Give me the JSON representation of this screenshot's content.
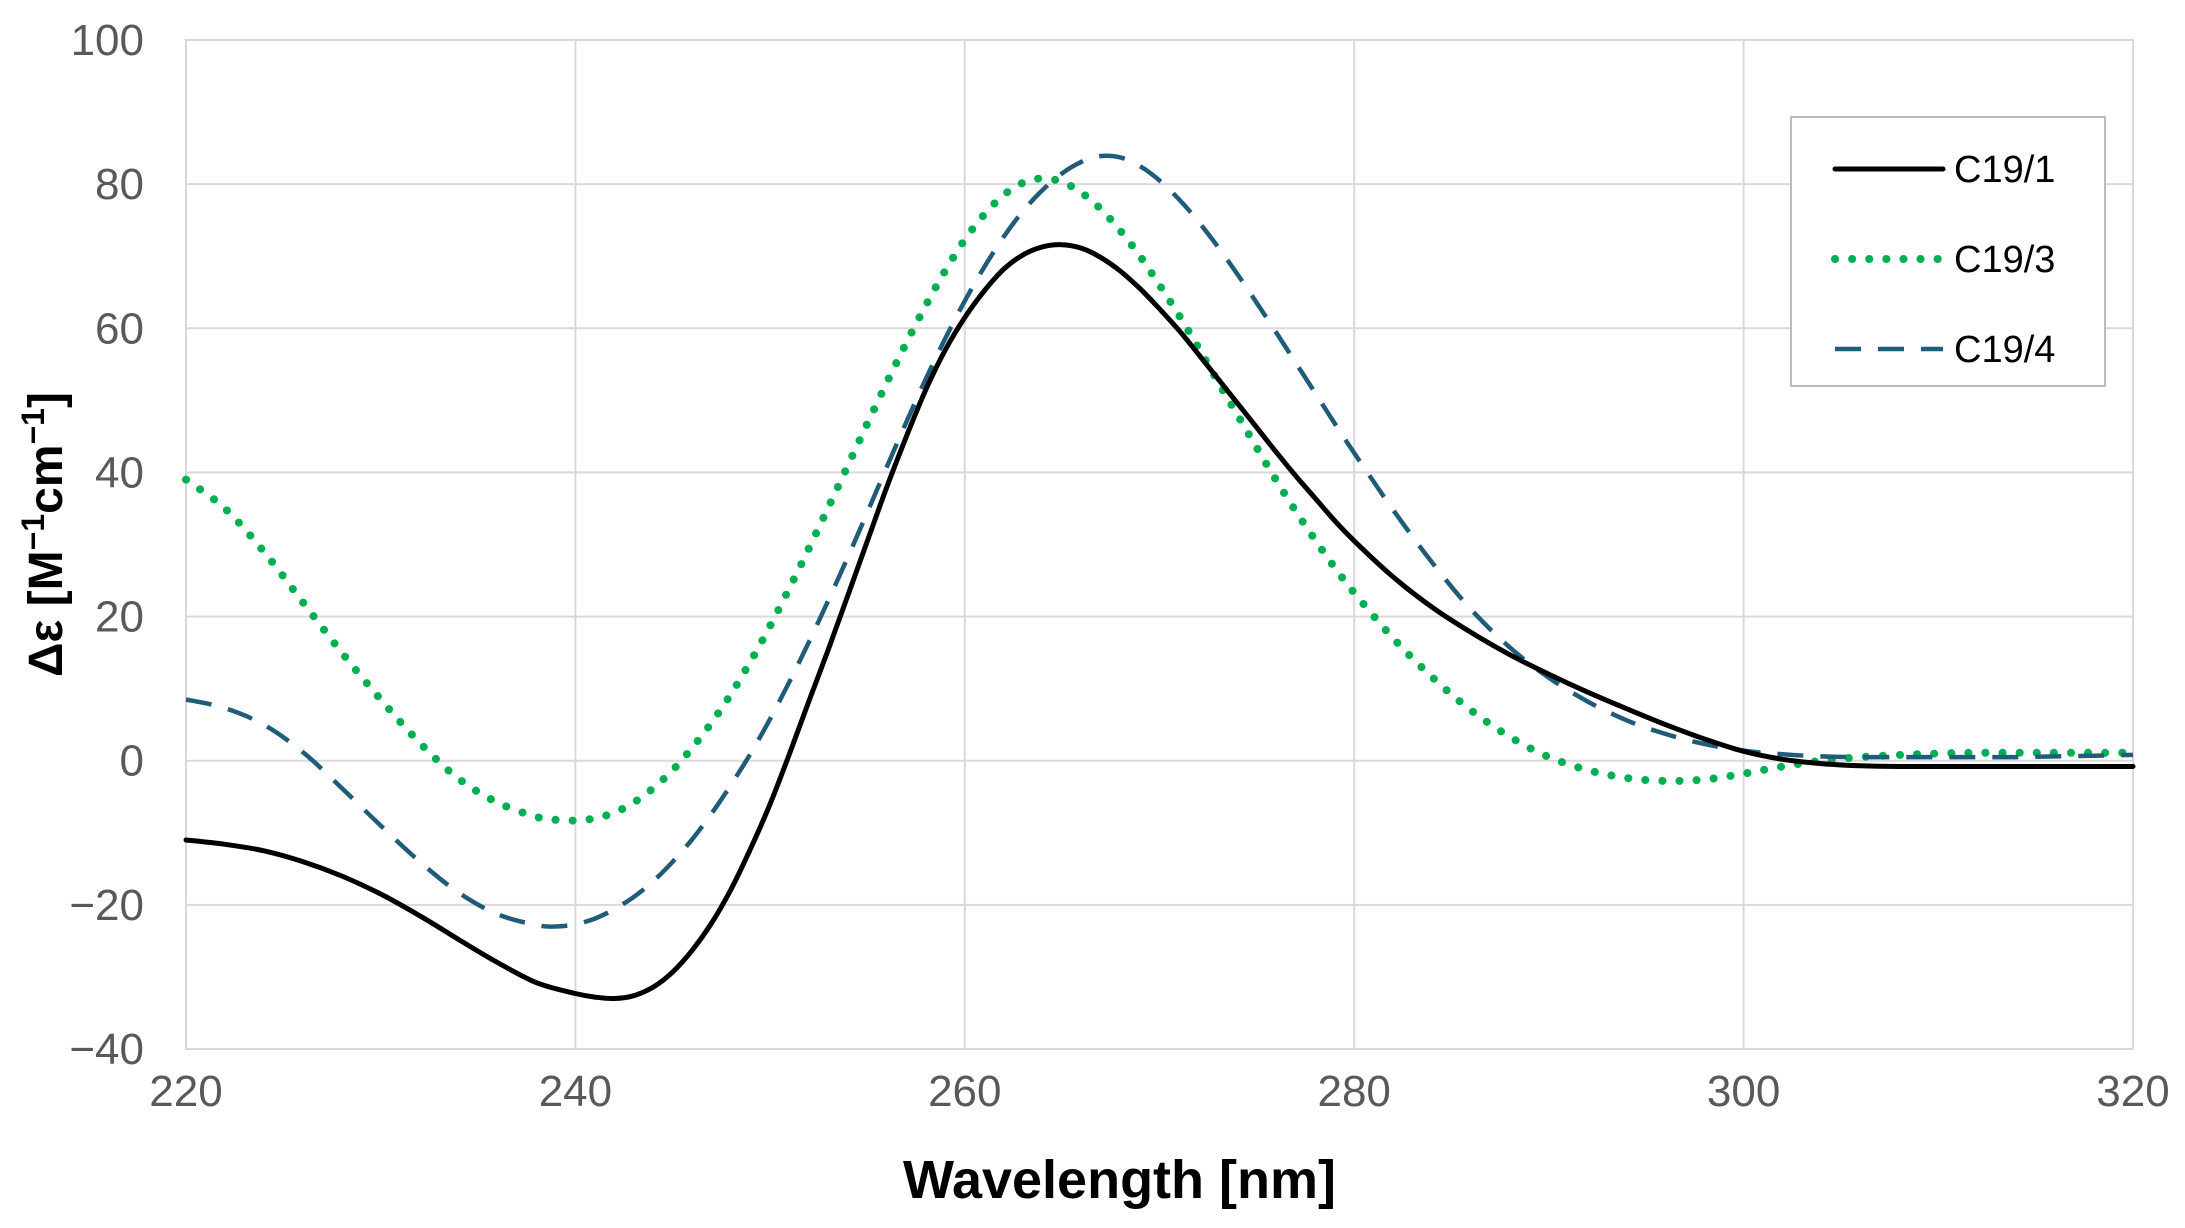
{
  "chart_data": {
    "type": "line",
    "title": "",
    "xlabel": "Wavelength [nm]",
    "ylabel_prefix": "Δε [M",
    "ylabel_sup1": "−1",
    "ylabel_mid": "cm",
    "ylabel_sup2": "−1",
    "ylabel_suffix": "]",
    "xlim": [
      220,
      320
    ],
    "ylim": [
      -40,
      100
    ],
    "xticks": [
      220,
      240,
      260,
      280,
      300,
      320
    ],
    "xtick_labels": [
      "220",
      "240",
      "260",
      "280",
      "300",
      "320"
    ],
    "yticks": [
      -40,
      -20,
      0,
      20,
      40,
      60,
      80,
      100
    ],
    "ytick_labels": [
      "−40",
      "−20",
      "0",
      "20",
      "40",
      "60",
      "80",
      "100"
    ],
    "grid": true,
    "legend_position": "top-right",
    "series": [
      {
        "name": "C19/1",
        "color": "#000000",
        "style": "solid",
        "x": [
          220,
          222,
          224,
          226,
          228,
          230,
          232,
          234,
          236,
          238,
          240,
          241,
          242,
          243,
          244,
          245,
          246,
          247,
          248,
          249,
          250,
          251,
          252,
          253,
          254,
          255,
          256,
          257,
          258,
          259,
          260,
          261,
          262,
          263,
          264,
          265,
          266,
          267,
          268,
          269,
          270,
          271,
          272,
          273,
          274,
          275,
          276,
          277,
          278,
          279,
          280,
          282,
          284,
          286,
          288,
          290,
          292,
          294,
          296,
          298,
          300,
          302,
          304,
          306,
          308,
          310,
          312,
          314,
          316,
          318,
          320
        ],
        "y": [
          -11,
          -11.6,
          -12.5,
          -14,
          -16,
          -18.5,
          -21.5,
          -24.8,
          -28,
          -30.8,
          -32.3,
          -32.8,
          -33,
          -32.6,
          -31.4,
          -29.3,
          -26.3,
          -22.5,
          -17.8,
          -12.2,
          -6,
          1,
          8.3,
          15.5,
          23,
          30.5,
          38,
          45,
          51.5,
          57,
          61.5,
          65.2,
          68.2,
          70.2,
          71.3,
          71.6,
          71.1,
          69.8,
          67.9,
          65.5,
          62.7,
          59.7,
          56.4,
          53,
          49.6,
          46.2,
          42.8,
          39.5,
          36.4,
          33.3,
          30.5,
          25.5,
          21.3,
          17.8,
          14.7,
          12,
          9.5,
          7.2,
          5,
          3,
          1.3,
          0.2,
          -0.4,
          -0.7,
          -0.8,
          -0.8,
          -0.8,
          -0.8,
          -0.8,
          -0.8,
          -0.8
        ]
      },
      {
        "name": "C19/3",
        "color": "#00B050",
        "style": "dotted",
        "x": [
          220,
          222,
          224,
          226,
          228,
          230,
          232,
          234,
          236,
          238,
          239,
          240,
          241,
          242,
          243,
          244,
          245,
          246,
          247,
          248,
          249,
          250,
          251,
          252,
          253,
          254,
          255,
          256,
          257,
          258,
          259,
          260,
          261,
          262,
          263,
          264,
          265,
          266,
          267,
          268,
          269,
          270,
          271,
          272,
          273,
          274,
          275,
          276,
          277,
          278,
          279,
          280,
          282,
          284,
          286,
          288,
          290,
          292,
          294,
          296,
          298,
          300,
          302,
          304,
          306,
          308,
          310,
          312,
          314,
          316,
          318,
          320
        ],
        "y": [
          39,
          35,
          29,
          22,
          15,
          8.5,
          2.5,
          -2.5,
          -5.8,
          -7.8,
          -8.2,
          -8.3,
          -8,
          -7.2,
          -5.8,
          -3.8,
          -1.3,
          1.8,
          5.3,
          9.3,
          13.8,
          18.7,
          24,
          29.5,
          35.2,
          41,
          46.8,
          52.5,
          58,
          63.2,
          68,
          72.3,
          75.8,
          78.5,
          80.2,
          80.8,
          80.3,
          78.8,
          76.5,
          73.5,
          70,
          66,
          61.8,
          57.3,
          52.6,
          48,
          43.4,
          38.9,
          34.6,
          30.6,
          26.8,
          23.3,
          17,
          11.6,
          7,
          3.3,
          0.5,
          -1.3,
          -2.4,
          -2.8,
          -2.6,
          -1.8,
          -0.8,
          0,
          0.5,
          0.8,
          1,
          1.1,
          1.1,
          1.1,
          1.1,
          1.1
        ]
      },
      {
        "name": "C19/4",
        "color": "#1F5C7A",
        "style": "dashed",
        "x": [
          220,
          222,
          224,
          226,
          228,
          230,
          232,
          234,
          236,
          238,
          239,
          240,
          241,
          242,
          243,
          244,
          245,
          246,
          247,
          248,
          249,
          250,
          251,
          252,
          253,
          254,
          255,
          256,
          257,
          258,
          259,
          260,
          261,
          262,
          263,
          264,
          265,
          266,
          267,
          268,
          269,
          270,
          271,
          272,
          273,
          274,
          275,
          276,
          277,
          278,
          279,
          280,
          282,
          284,
          286,
          288,
          290,
          292,
          294,
          296,
          298,
          300,
          302,
          304,
          306,
          308,
          310,
          312,
          314,
          316,
          318,
          320
        ],
        "y": [
          8.5,
          7.3,
          5,
          1.2,
          -3.8,
          -9,
          -14,
          -18.3,
          -21.3,
          -22.8,
          -23,
          -22.7,
          -21.9,
          -20.6,
          -18.9,
          -16.7,
          -14,
          -10.9,
          -7.3,
          -3.3,
          1,
          5.8,
          11,
          16.5,
          22.3,
          28.3,
          34.5,
          40.8,
          47,
          53,
          58.6,
          63.8,
          68.5,
          72.7,
          76.3,
          79.2,
          81.5,
          83.1,
          83.9,
          83.7,
          82.5,
          80.5,
          77.9,
          74.8,
          71.3,
          67.5,
          63.5,
          59.4,
          55.2,
          51,
          46.8,
          42.7,
          34.8,
          27.5,
          21,
          15.7,
          11.5,
          8.2,
          5.6,
          3.7,
          2.3,
          1.4,
          0.9,
          0.6,
          0.5,
          0.5,
          0.5,
          0.5,
          0.5,
          0.6,
          0.7,
          0.8
        ]
      }
    ]
  }
}
